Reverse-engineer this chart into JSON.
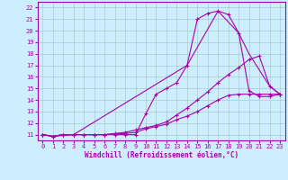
{
  "xlabel": "Windchill (Refroidissement éolien,°C)",
  "background_color": "#cceeff",
  "grid_color": "#aacccc",
  "line_color": "#aa00aa",
  "spine_color": "#aa00aa",
  "xlim": [
    -0.5,
    23.5
  ],
  "ylim": [
    10.5,
    22.5
  ],
  "xticks": [
    0,
    1,
    2,
    3,
    4,
    5,
    6,
    7,
    8,
    9,
    10,
    11,
    12,
    13,
    14,
    15,
    16,
    17,
    18,
    19,
    20,
    21,
    22,
    23
  ],
  "yticks": [
    11,
    12,
    13,
    14,
    15,
    16,
    17,
    18,
    19,
    20,
    21,
    22
  ],
  "curve1_x": [
    0,
    1,
    2,
    3,
    4,
    5,
    6,
    7,
    8,
    9,
    10,
    11,
    12,
    13,
    14,
    15,
    16,
    17,
    18,
    19,
    20,
    21,
    22,
    23
  ],
  "curve1_y": [
    11,
    10.85,
    11,
    11,
    11,
    11,
    11,
    11,
    11,
    11,
    12.8,
    14.5,
    15,
    15.5,
    17,
    21,
    21.5,
    21.7,
    21.4,
    19.8,
    14.8,
    14.3,
    14.3,
    14.5
  ],
  "curve2_x": [
    0,
    1,
    2,
    3,
    4,
    5,
    6,
    7,
    8,
    9,
    10,
    11,
    12,
    13,
    14,
    15,
    16,
    17,
    18,
    19,
    20,
    21,
    22,
    23
  ],
  "curve2_y": [
    11,
    10.85,
    11,
    11,
    11,
    11,
    11,
    11.1,
    11.2,
    11.4,
    11.6,
    11.8,
    12.1,
    12.7,
    13.3,
    14.0,
    14.7,
    15.5,
    16.2,
    16.8,
    17.5,
    17.8,
    15.2,
    14.5
  ],
  "curve3_x": [
    0,
    1,
    2,
    3,
    4,
    5,
    6,
    7,
    8,
    9,
    10,
    11,
    12,
    13,
    14,
    15,
    16,
    17,
    18,
    19,
    20,
    21,
    22,
    23
  ],
  "curve3_y": [
    11,
    10.85,
    11,
    11,
    11,
    11,
    11,
    11.05,
    11.1,
    11.2,
    11.5,
    11.7,
    11.9,
    12.3,
    12.6,
    13.0,
    13.5,
    14.0,
    14.4,
    14.5,
    14.5,
    14.5,
    14.5,
    14.5
  ],
  "curve4_x": [
    0,
    1,
    3,
    14,
    17,
    19,
    20,
    22,
    23
  ],
  "curve4_y": [
    11,
    10.85,
    11,
    17,
    21.7,
    19.8,
    18.0,
    15.2,
    14.5
  ],
  "xlabel_fontsize": 5.5,
  "tick_fontsize": 5.0
}
